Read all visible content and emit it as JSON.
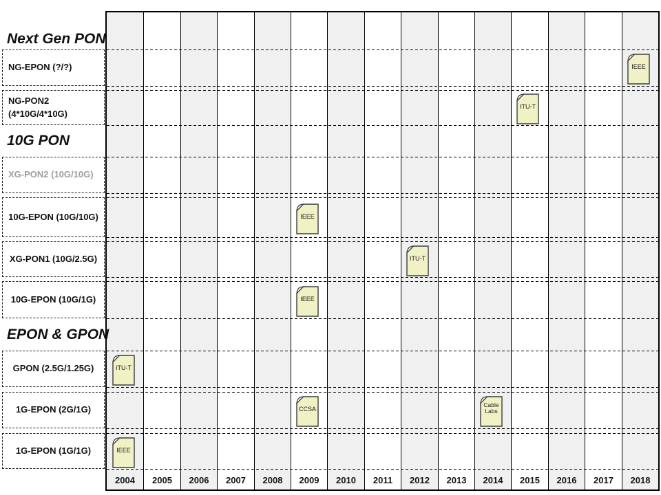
{
  "colors": {
    "shaded_column": "#f0f0f0",
    "grid_line": "#000000",
    "doc_icon_fill": "#f1f1c6",
    "doc_icon_fold": "#fdfdf2",
    "doc_icon_border": "#3d3d3d",
    "muted_label": "#9e9e9e",
    "text": "#111111"
  },
  "years": [
    "2004",
    "2005",
    "2006",
    "2007",
    "2008",
    "2009",
    "2010",
    "2011",
    "2012",
    "2013",
    "2014",
    "2015",
    "2016",
    "2017",
    "2018"
  ],
  "rows": [
    {
      "type": "header",
      "label": "Next Gen PON"
    },
    {
      "type": "item",
      "label": "NG-EPON (?/?)",
      "milestones": [
        {
          "year": "2018",
          "org": "IEEE"
        }
      ]
    },
    {
      "type": "item",
      "label": "NG-PON2\n(4*10G/4*10G)",
      "milestones": [
        {
          "year": "2015",
          "org": "ITU-T"
        }
      ]
    },
    {
      "type": "header",
      "label": "10G PON"
    },
    {
      "type": "item",
      "label": "XG-PON2 (10G/10G)",
      "muted": true,
      "milestones": []
    },
    {
      "type": "item",
      "label": "10G-EPON (10G/10G)",
      "milestones": [
        {
          "year": "2009",
          "org": "IEEE"
        }
      ]
    },
    {
      "type": "item",
      "label": "XG-PON1 (10G/2.5G)",
      "milestones": [
        {
          "year": "2012",
          "org": "ITU-T"
        }
      ]
    },
    {
      "type": "item",
      "label": "10G-EPON (10G/1G)",
      "milestones": [
        {
          "year": "2009",
          "org": "IEEE"
        }
      ]
    },
    {
      "type": "header",
      "label": "EPON & GPON"
    },
    {
      "type": "item",
      "label": "GPON (2.5G/1.25G)",
      "milestones": [
        {
          "year": "2004",
          "org": "ITU-T"
        }
      ]
    },
    {
      "type": "item",
      "label": "1G-EPON (2G/1G)",
      "milestones": [
        {
          "year": "2009",
          "org": "CCSA"
        },
        {
          "year": "2014",
          "org": "Cable Labs"
        }
      ]
    },
    {
      "type": "item",
      "label": "1G-EPON (1G/1G)",
      "milestones": [
        {
          "year": "2004",
          "org": "IEEE"
        }
      ]
    }
  ]
}
